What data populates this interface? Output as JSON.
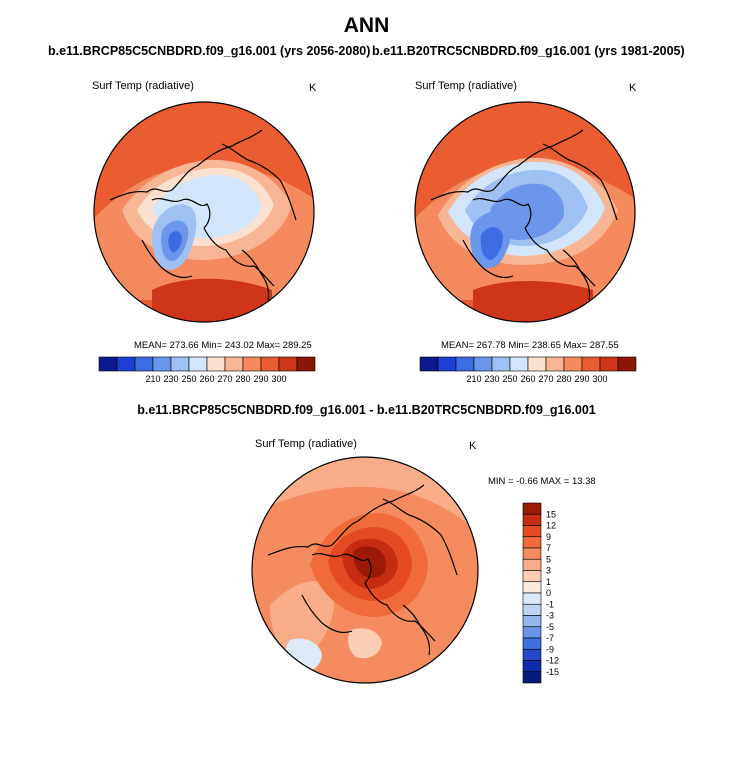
{
  "figure": {
    "title": "ANN",
    "panels": [
      {
        "case_title": "b.e11.BRCP85C5CNBDRD.f09_g16.001 (yrs 2056-2080)",
        "variable": "Surf Temp (radiative)",
        "units": "K",
        "stats": "MEAN= 273.66  Min= 243.02  Max= 289.25"
      },
      {
        "case_title": "b.e11.B20TRC5CNBDRD.f09_g16.001 (yrs 1981-2005)",
        "variable": "Surf Temp (radiative)",
        "units": "K",
        "stats": "MEAN= 267.78  Min= 238.65  Max= 287.55"
      }
    ],
    "diff": {
      "title": "b.e11.BRCP85C5CNBDRD.f09_g16.001 - b.e11.B20TRC5CNBDRD.f09_g16.001",
      "variable": "Surf Temp (radiative)",
      "units": "K",
      "stats": "MIN =  -0.66 MAX =  13.38"
    }
  },
  "chart_data": [
    {
      "type": "heatmap",
      "projection": "north polar stereographic",
      "title": "b.e11.BRCP85C5CNBDRD.f09_g16.001 (yrs 2056-2080)",
      "field": "Surf Temp (radiative)",
      "units": "K",
      "mean": 273.66,
      "min": 243.02,
      "max": 289.25,
      "colorbar_ticks": [
        "210",
        "230",
        "250",
        "260",
        "270",
        "280",
        "290",
        "300"
      ],
      "colors": [
        "#0b1a90",
        "#1d3fd6",
        "#3d6de3",
        "#6a97ec",
        "#9fc0f3",
        "#d3e5fb",
        "#fbe0cf",
        "#f8b694",
        "#f48a5e",
        "#ea5d30",
        "#cf3519",
        "#8a1606"
      ]
    },
    {
      "type": "heatmap",
      "projection": "north polar stereographic",
      "title": "b.e11.B20TRC5CNBDRD.f09_g16.001 (yrs 1981-2005)",
      "field": "Surf Temp (radiative)",
      "units": "K",
      "mean": 267.78,
      "min": 238.65,
      "max": 287.55,
      "colorbar_ticks": [
        "210",
        "230",
        "250",
        "260",
        "270",
        "280",
        "290",
        "300"
      ],
      "colors": [
        "#0b1a90",
        "#1d3fd6",
        "#3d6de3",
        "#6a97ec",
        "#9fc0f3",
        "#d3e5fb",
        "#fbe0cf",
        "#f8b694",
        "#f48a5e",
        "#ea5d30",
        "#cf3519",
        "#8a1606"
      ]
    },
    {
      "type": "heatmap",
      "projection": "north polar stereographic",
      "title": "b.e11.BRCP85C5CNBDRD.f09_g16.001 - b.e11.B20TRC5CNBDRD.f09_g16.001",
      "field": "Surf Temp (radiative)",
      "units": "K",
      "min": -0.66,
      "max": 13.38,
      "colorbar_ticks": [
        "15",
        "12",
        "9",
        "7",
        "5",
        "3",
        "1",
        "0",
        "-1",
        "-3",
        "-5",
        "-7",
        "-9",
        "-12",
        "-15"
      ],
      "colors": [
        "#9a1a06",
        "#c52c12",
        "#e64a22",
        "#f06a3a",
        "#f58c5f",
        "#f8ad88",
        "#fbcdb2",
        "#fdeadf",
        "#dde9f8",
        "#bcd3f2",
        "#92b5ec",
        "#6b94e6",
        "#4270dd",
        "#2149c8",
        "#0e2ca8",
        "#091a7d"
      ]
    }
  ]
}
